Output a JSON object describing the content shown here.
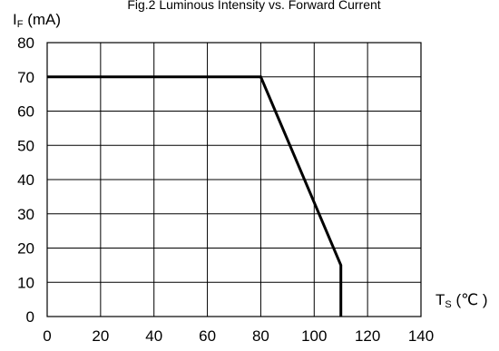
{
  "chart_data": {
    "type": "line",
    "title": "Fig.2 Luminous Intensity vs. Forward Current",
    "ylabel": {
      "main": "I",
      "sub": "F",
      "unit": " (mA)"
    },
    "xlabel": {
      "main": "T",
      "sub": "S",
      "unit": " (℃ )"
    },
    "xlim": [
      0,
      140
    ],
    "ylim": [
      0,
      80
    ],
    "x_ticks": [
      0,
      20,
      40,
      60,
      80,
      100,
      120,
      140
    ],
    "y_ticks": [
      0,
      10,
      20,
      30,
      40,
      50,
      60,
      70,
      80
    ],
    "grid": true,
    "series": [
      {
        "x": [
          0,
          80,
          110,
          110
        ],
        "y": [
          70,
          70,
          15,
          0
        ]
      }
    ],
    "line_color": "#000000",
    "grid_color": "#000000"
  }
}
